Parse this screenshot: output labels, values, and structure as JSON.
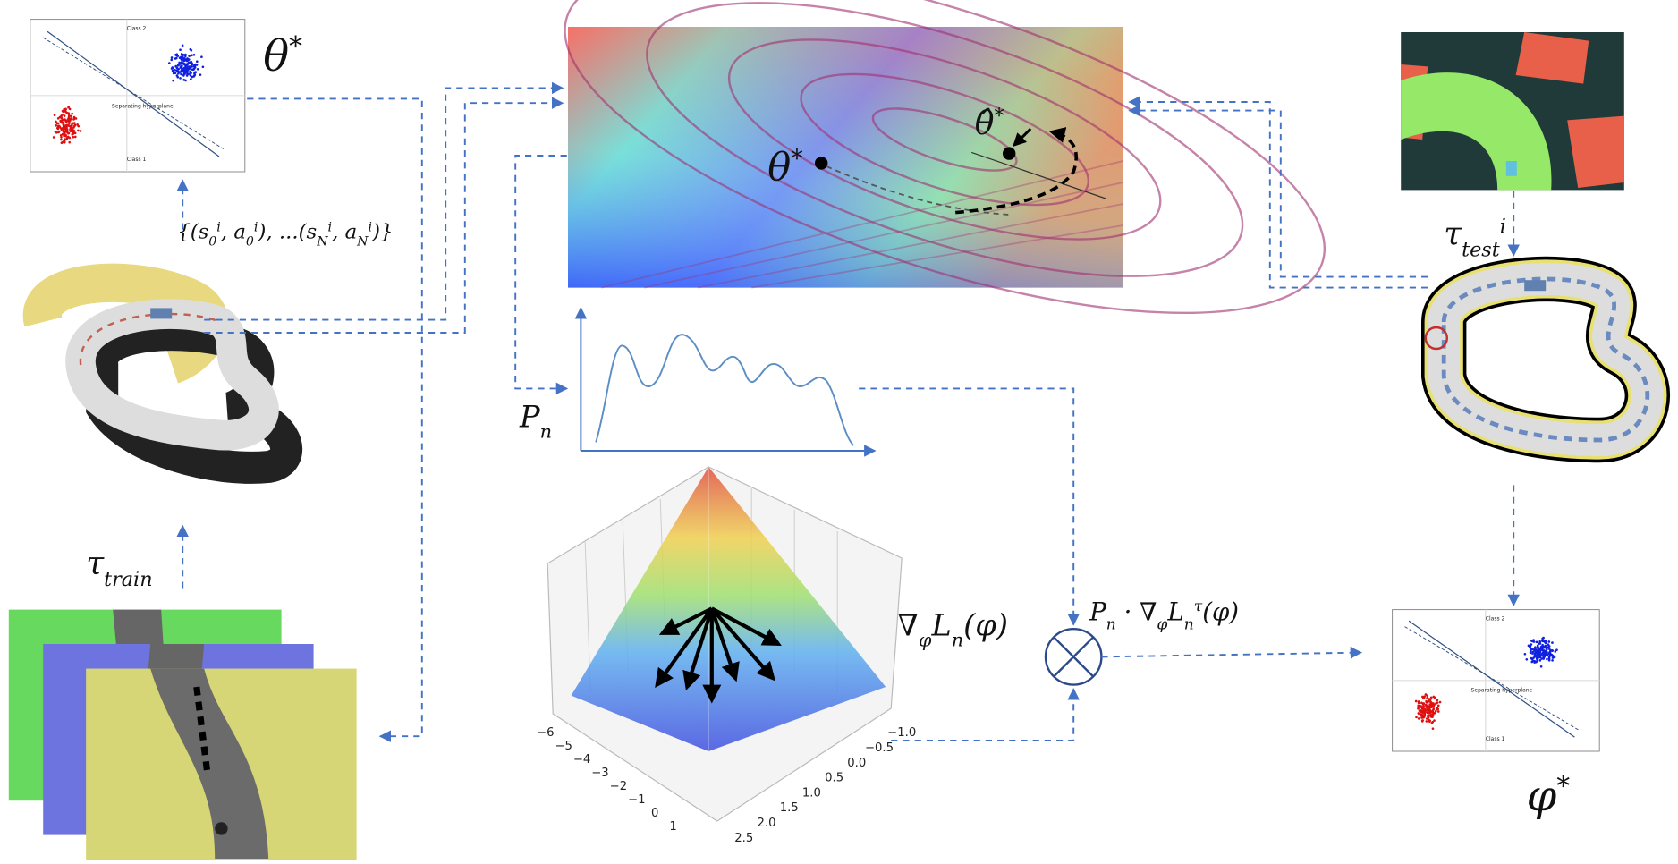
{
  "labels": {
    "theta_star": [
      {
        "text": "θ",
        "sup": "*"
      }
    ],
    "demo_set": [
      {
        "text": "{(s",
        "sub": "0",
        "sup": "i"
      },
      {
        "text": ", a",
        "sub": "0",
        "sup": "i"
      },
      {
        "text": "), ...(s",
        "sub": "N",
        "sup": "i"
      },
      {
        "text": ", a",
        "sub": "N",
        "sup": "i"
      },
      {
        "text": ")}"
      }
    ],
    "tau_train": [
      {
        "text": "τ",
        "sub": "train"
      }
    ],
    "p_n": [
      {
        "text": "P",
        "sub": "n"
      }
    ],
    "grad_loss": [
      {
        "text": "∇",
        "sub": "φ"
      },
      {
        "text": "L",
        "sub": "n"
      },
      {
        "text": "(φ)"
      }
    ],
    "weighted_grad": [
      {
        "text": "P",
        "sub": "n"
      },
      {
        "text": " · ∇",
        "sub": "φ"
      },
      {
        "text": "L",
        "sub": "n",
        "sup": "τ"
      },
      {
        "text": "(φ)"
      }
    ],
    "tau_test": [
      {
        "text": "τ",
        "sub": "test",
        "sup": "i"
      }
    ],
    "phi_star": [
      {
        "text": "φ",
        "sup": "*"
      }
    ],
    "contour_theta": [
      {
        "text": "θ",
        "sup": "*"
      }
    ],
    "contour_theta_hat": [
      {
        "text": "θ̂",
        "sup": "*"
      }
    ]
  },
  "scatter_plot": {
    "class_top": "Class 2",
    "class_bottom": "Class 1",
    "hyperplane": "Separating hyperplane"
  },
  "surface_axes": {
    "left_ticks": [
      "−6",
      "−5",
      "−4",
      "−3",
      "−2",
      "−1",
      "0",
      "1"
    ],
    "right_ticks": [
      "−1.0",
      "−0.5",
      "0.0",
      "0.5",
      "1.0",
      "1.5",
      "2.0",
      "2.5"
    ]
  }
}
